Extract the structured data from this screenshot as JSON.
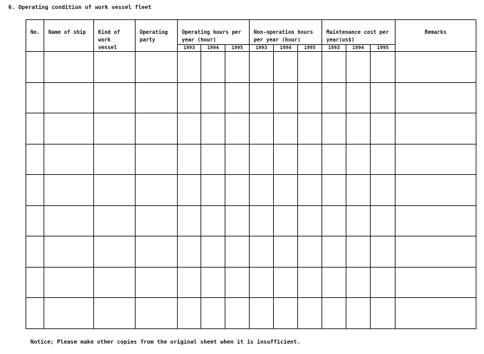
{
  "title": "6. Operating condition of work vessel fleet",
  "table": {
    "columns": {
      "no": "No.",
      "name_of_ship": "Name of ship",
      "kind_of_work_vessel": "Kind of work vessel",
      "operating_party": "Operating party",
      "operating_hours": "Operating hours per year (hour)",
      "non_operation_hours": "Non-operation hours per year (hour)",
      "maintenance_cost": "Maintenance cost per year(us$)",
      "remarks": "Remarks"
    },
    "years": [
      "1993",
      "1994",
      "1995"
    ],
    "row_count": 9
  },
  "notice": "Notice; Please make other copies from the original sheet when it is insufficient."
}
